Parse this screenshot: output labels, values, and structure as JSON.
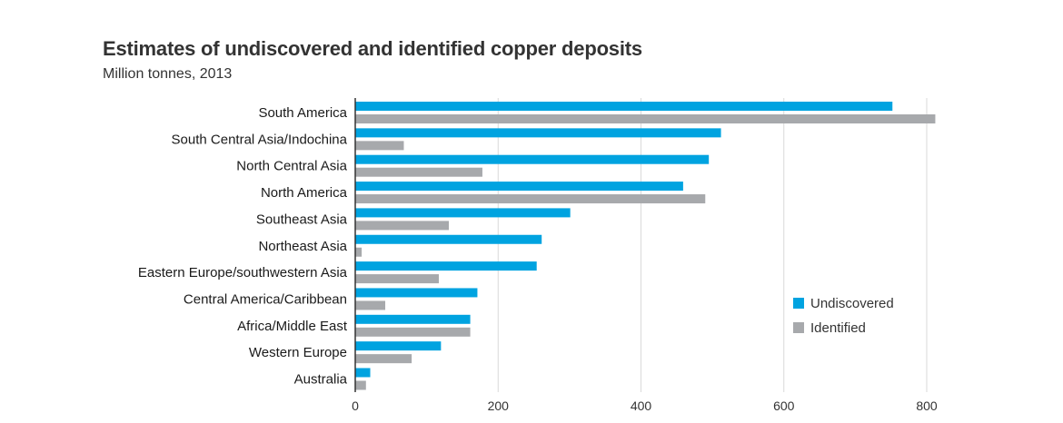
{
  "title": "Estimates of undiscovered and identified copper deposits",
  "subtitle": "Million tonnes, 2013",
  "colors": {
    "undiscovered": "#00a3e0",
    "identified": "#a7a9ac",
    "grid": "#d9d9d9",
    "axis": "#333333"
  },
  "chart_data": {
    "type": "bar",
    "orientation": "horizontal",
    "title": "Estimates of undiscovered and identified copper deposits",
    "subtitle": "Million tonnes, 2013",
    "categories": [
      "South America",
      "South Central Asia/Indochina",
      "North Central Asia",
      "North America",
      "Southeast Asia",
      "Northeast Asia",
      "Eastern Europe/southwestern Asia",
      "Central America/Caribbean",
      "Africa/Middle East",
      "Western Europe",
      "Australia"
    ],
    "series": [
      {
        "name": "Undiscovered",
        "values": [
          752,
          512,
          495,
          459,
          301,
          261,
          254,
          171,
          161,
          120,
          21
        ]
      },
      {
        "name": "Identified",
        "values": [
          812,
          68,
          178,
          490,
          131,
          9,
          117,
          42,
          161,
          79,
          15
        ]
      }
    ],
    "xlim": [
      0,
      800
    ],
    "xticks": [
      "0",
      "200",
      "400",
      "600",
      "800"
    ],
    "grid": true,
    "legend": "right"
  }
}
